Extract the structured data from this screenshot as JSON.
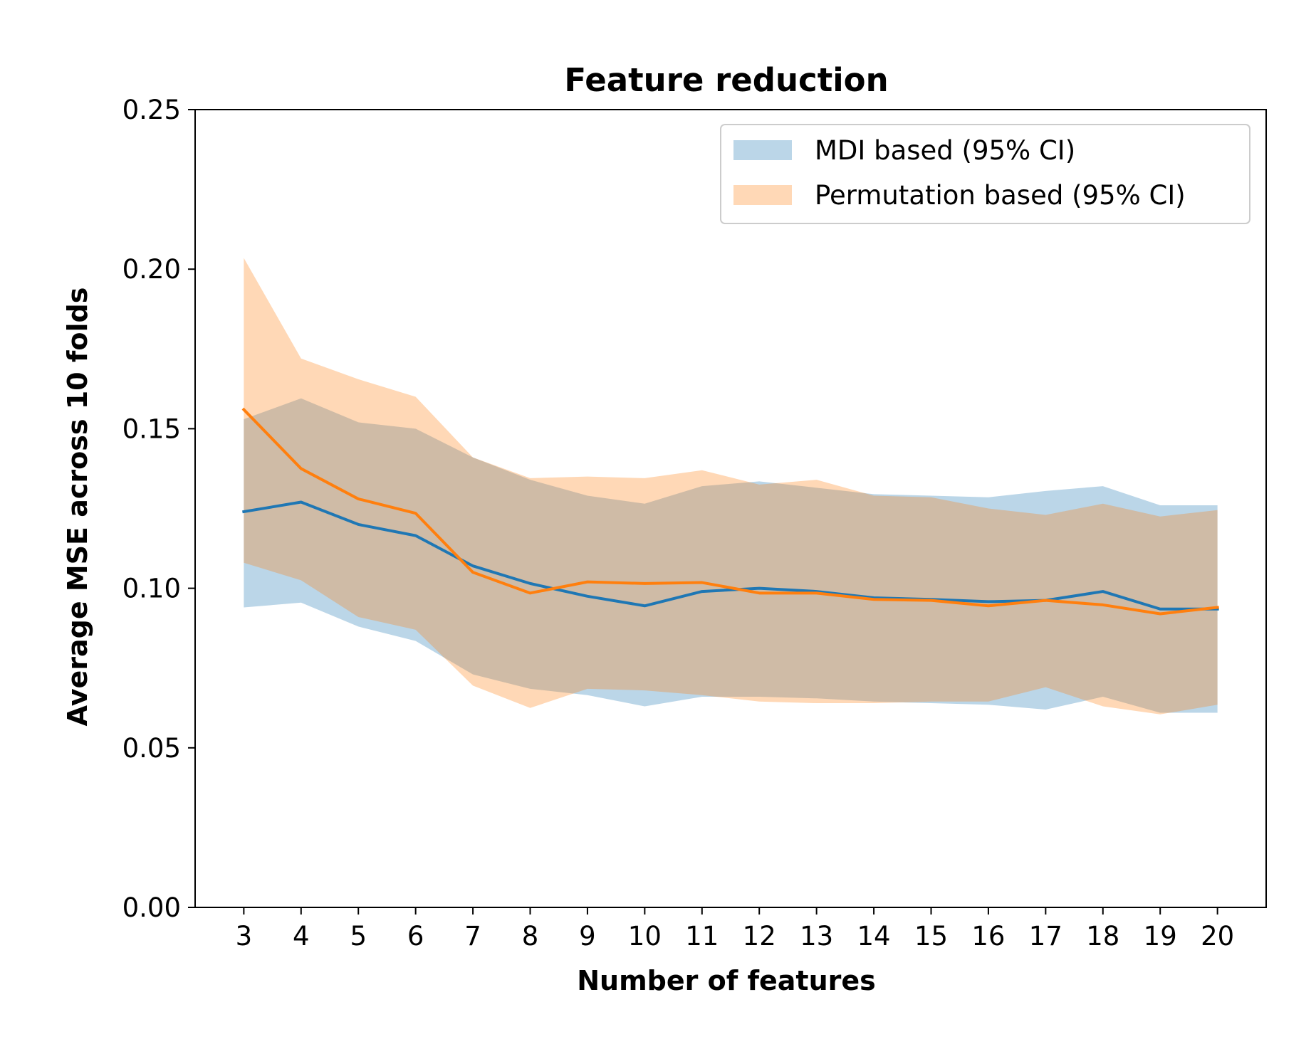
{
  "chart_data": {
    "type": "line",
    "title": "Feature reduction",
    "xlabel": "Number of features",
    "ylabel": "Average MSE across 10 folds",
    "x": [
      3,
      4,
      5,
      6,
      7,
      8,
      9,
      10,
      11,
      12,
      13,
      14,
      15,
      16,
      17,
      18,
      19,
      20
    ],
    "xticks": [
      "3",
      "4",
      "5",
      "6",
      "7",
      "8",
      "9",
      "10",
      "11",
      "12",
      "13",
      "14",
      "15",
      "16",
      "17",
      "18",
      "19",
      "20"
    ],
    "xlim": [
      2.15,
      20.85
    ],
    "ylim": [
      0,
      0.25
    ],
    "yticks": [
      "0.00",
      "0.05",
      "0.10",
      "0.15",
      "0.20",
      "0.25"
    ],
    "yticks_values": [
      0,
      0.05,
      0.1,
      0.15,
      0.2,
      0.25
    ],
    "grid": false,
    "legend_position": "top-right",
    "series": [
      {
        "name": "MDI based (95% CI)",
        "color": "#1f77b4",
        "mean": [
          0.124,
          0.127,
          0.12,
          0.1165,
          0.107,
          0.1015,
          0.0975,
          0.0945,
          0.099,
          0.1,
          0.099,
          0.097,
          0.0965,
          0.0958,
          0.0962,
          0.099,
          0.0935,
          0.0935
        ],
        "upper": [
          0.153,
          0.1595,
          0.152,
          0.15,
          0.141,
          0.134,
          0.129,
          0.1265,
          0.132,
          0.1335,
          0.1315,
          0.1295,
          0.129,
          0.1285,
          0.1305,
          0.132,
          0.126,
          0.126
        ],
        "lower": [
          0.094,
          0.0955,
          0.088,
          0.0835,
          0.073,
          0.0685,
          0.0665,
          0.063,
          0.066,
          0.066,
          0.0655,
          0.0645,
          0.064,
          0.0635,
          0.062,
          0.066,
          0.061,
          0.061
        ]
      },
      {
        "name": "Permutation based (95% CI)",
        "color": "#ff7f0e",
        "mean": [
          0.156,
          0.1375,
          0.128,
          0.1235,
          0.105,
          0.0985,
          0.102,
          0.1015,
          0.1018,
          0.0985,
          0.0985,
          0.0965,
          0.0962,
          0.0945,
          0.0962,
          0.0948,
          0.092,
          0.094
        ],
        "upper": [
          0.2035,
          0.172,
          0.1655,
          0.16,
          0.141,
          0.1345,
          0.135,
          0.1345,
          0.137,
          0.1325,
          0.134,
          0.129,
          0.1285,
          0.125,
          0.123,
          0.1265,
          0.1225,
          0.1245
        ],
        "lower": [
          0.108,
          0.1025,
          0.091,
          0.087,
          0.0695,
          0.0625,
          0.0685,
          0.068,
          0.0665,
          0.0645,
          0.064,
          0.064,
          0.0645,
          0.0645,
          0.069,
          0.063,
          0.0605,
          0.0635
        ]
      }
    ]
  }
}
